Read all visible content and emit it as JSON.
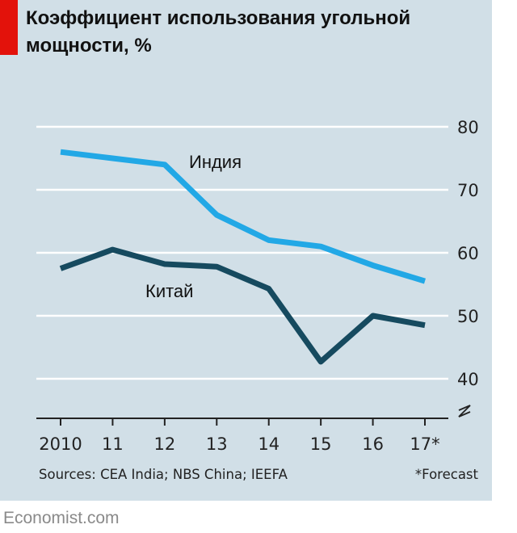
{
  "title": "Коэффициент использования угольной мощности, %",
  "source": "Sources: CEA India; NBS China; IEEFA",
  "forecast_note": "*Forecast",
  "brand": "Economist.com",
  "colors": {
    "background": "#d1dfe7",
    "india": "#22a8e6",
    "china": "#164a5f",
    "accent": "#e3120b"
  },
  "chart_data": {
    "type": "line",
    "title": "Коэффициент использования угольной мощности, %",
    "x": [
      2010,
      2011,
      2012,
      2013,
      2014,
      2015,
      2016,
      2017
    ],
    "x_tick_labels": [
      "2010",
      "11",
      "12",
      "13",
      "14",
      "15",
      "16",
      "17*"
    ],
    "y_tick_labels": [
      "80",
      "70",
      "60",
      "50",
      "40"
    ],
    "y_ticks": [
      80,
      70,
      60,
      50,
      40
    ],
    "ylim": [
      40,
      80
    ],
    "y_axis_side": "right",
    "grid": true,
    "series": [
      {
        "name": "Индия",
        "color": "#22a8e6",
        "values": [
          76.0,
          75.0,
          74.0,
          66.0,
          62.0,
          61.0,
          58.0,
          55.5
        ]
      },
      {
        "name": "Китай",
        "color": "#164a5f",
        "values": [
          57.5,
          60.5,
          58.2,
          57.8,
          54.3,
          42.7,
          50.0,
          48.5
        ]
      }
    ]
  }
}
